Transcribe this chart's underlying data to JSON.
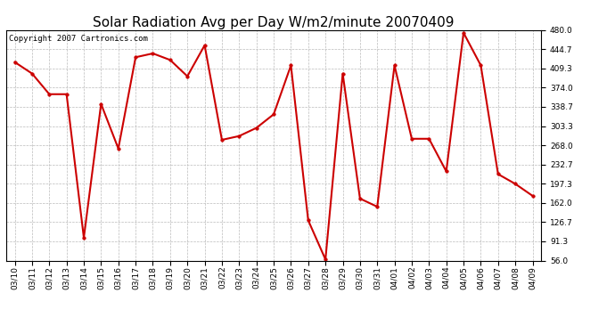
{
  "title": "Solar Radiation Avg per Day W/m2/minute 20070409",
  "copyright": "Copyright 2007 Cartronics.com",
  "dates": [
    "03/10",
    "03/11",
    "03/12",
    "03/13",
    "03/14",
    "03/15",
    "03/16",
    "03/17",
    "03/18",
    "03/19",
    "03/20",
    "03/21",
    "03/22",
    "03/23",
    "03/24",
    "03/25",
    "03/26",
    "03/27",
    "03/28",
    "03/29",
    "03/30",
    "03/31",
    "04/01",
    "04/02",
    "04/03",
    "04/04",
    "04/05",
    "04/06",
    "04/07",
    "04/08",
    "04/09"
  ],
  "values": [
    421,
    400,
    362,
    362,
    98,
    344,
    262,
    430,
    437,
    425,
    395,
    452,
    278,
    285,
    300,
    325,
    415,
    130,
    58,
    400,
    170,
    155,
    415,
    280,
    280,
    220,
    475,
    415,
    215,
    197,
    175
  ],
  "line_color": "#cc0000",
  "marker_color": "#cc0000",
  "bg_color": "#ffffff",
  "grid_color": "#bbbbbb",
  "yticks": [
    56.0,
    91.3,
    126.7,
    162.0,
    197.3,
    232.7,
    268.0,
    303.3,
    338.7,
    374.0,
    409.3,
    444.7,
    480.0
  ],
  "ylim": [
    56.0,
    480.0
  ],
  "title_fontsize": 11,
  "copyright_fontsize": 6.5,
  "tick_fontsize": 6.5
}
